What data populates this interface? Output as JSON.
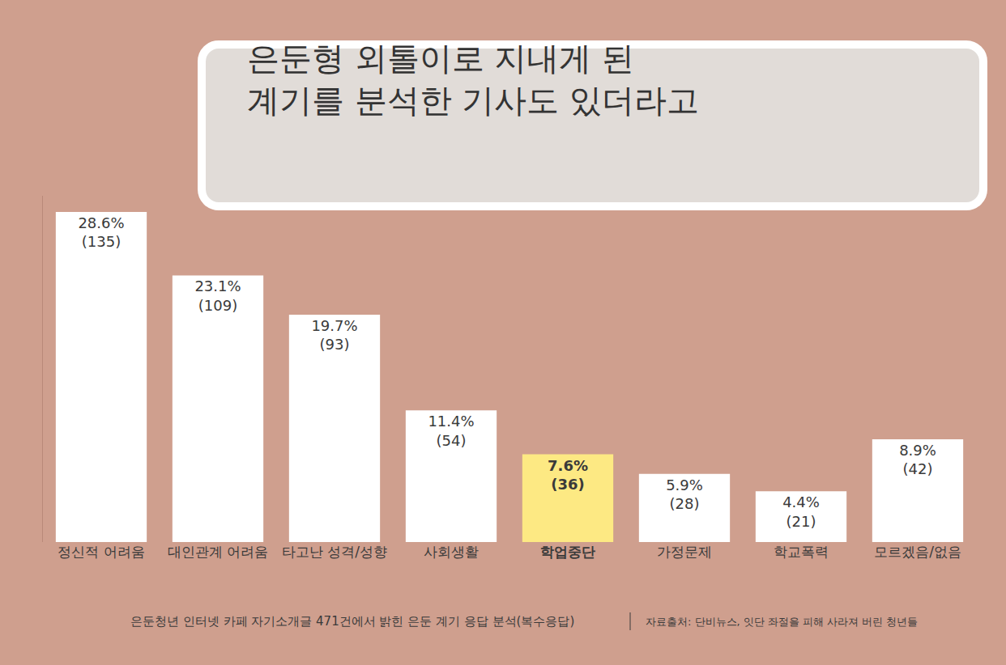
{
  "chart_data": {
    "type": "bar",
    "title": "은둔형 외톨이로 지내게 된\n계기를 분석한 기사도 있더라고",
    "categories": [
      "정신적 어려움",
      "대인관계 어려움",
      "타고난 성격/성향",
      "사회생활",
      "학업중단",
      "가정문제",
      "학교폭력",
      "모르겠음/없음"
    ],
    "values": [
      28.6,
      23.1,
      19.7,
      11.4,
      7.6,
      5.9,
      4.4,
      8.9
    ],
    "value_labels": [
      "28.6%",
      "23.1%",
      "19.7%",
      "11.4%",
      "7.6%",
      "5.9%",
      "4.4%",
      "8.9%"
    ],
    "count_labels": [
      "(135)",
      "(109)",
      "(93)",
      "(54)",
      "(36)",
      "(28)",
      "(21)",
      "(42)"
    ],
    "colors": [
      "#ffffff",
      "#ffffff",
      "#ffffff",
      "#ffffff",
      "#fde983",
      "#ffffff",
      "#ffffff",
      "#ffffff"
    ],
    "ylim": [
      0,
      30
    ],
    "yticks": [],
    "grid": false,
    "data_labels": true,
    "tick_labels": "x",
    "annotations": [
      "은둔청년 인터넷 카페 자기소개글 471건에서 밝힌 은둔 계기 응답 분석(복수응답)",
      "자료출처: 단비뉴스, 잇단 좌절을 피해 사라져 버린 청년들"
    ]
  }
}
